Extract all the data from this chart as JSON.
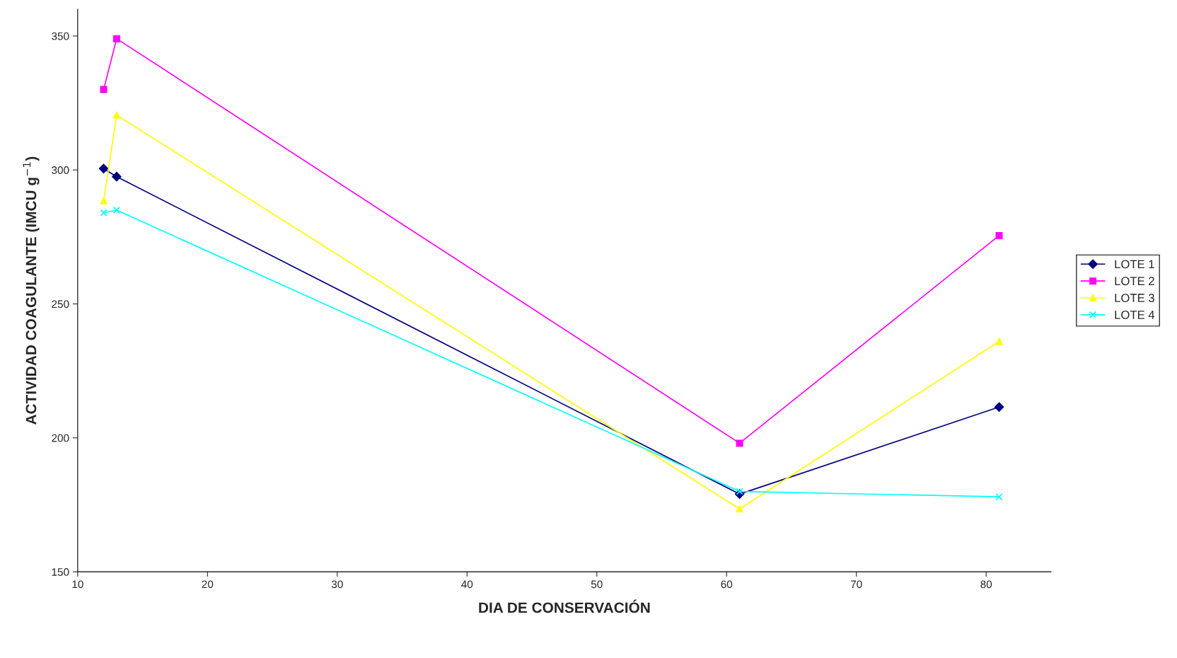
{
  "chart_data": {
    "type": "line",
    "xlabel": "DIA DE CONSERVACIÓN",
    "ylabel": "ACTIVIDAD COAGULANTE (IMCU g$^{−1}$)",
    "xlim": [
      10,
      85
    ],
    "xticks": [
      10,
      20,
      30,
      40,
      50,
      60,
      70,
      80
    ],
    "ylim": [
      150,
      360
    ],
    "yticks": [
      150,
      200,
      250,
      300,
      350
    ],
    "grid": false,
    "legend": "right",
    "series": [
      {
        "name": "LOTE 1",
        "color": "#000080",
        "marker": "diamond",
        "x": [
          12,
          13,
          61,
          81
        ],
        "values": [
          300.5,
          297.5,
          179,
          211.5
        ]
      },
      {
        "name": "LOTE 2",
        "color": "#ff00ff",
        "marker": "square",
        "x": [
          12,
          13,
          61,
          81
        ],
        "values": [
          330,
          349,
          198,
          275.5
        ]
      },
      {
        "name": "LOTE 3",
        "color": "#ffff00",
        "marker": "triangle",
        "x": [
          12,
          13,
          61,
          81
        ],
        "values": [
          288.5,
          320.5,
          173.5,
          236
        ]
      },
      {
        "name": "LOTE 4",
        "color": "#00ffff",
        "marker": "cross",
        "x": [
          12,
          13,
          61,
          81
        ],
        "values": [
          284,
          285,
          180,
          178
        ]
      }
    ]
  }
}
